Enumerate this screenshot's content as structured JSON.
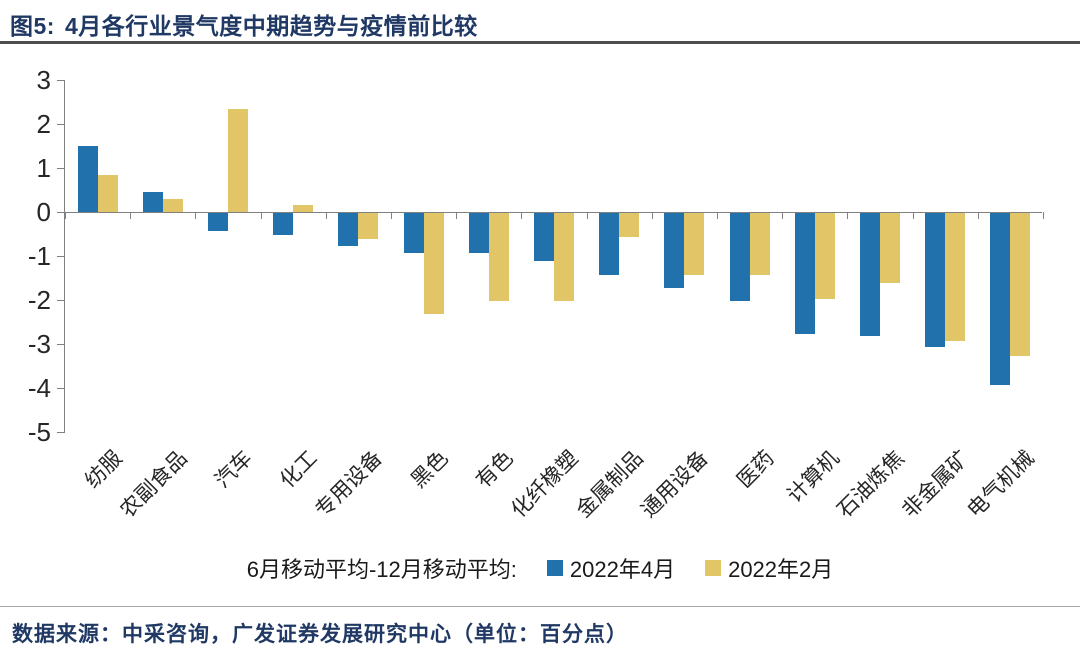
{
  "header": {
    "figure_label": "图5:",
    "title": "4月各行业景气度中期趋势与疫情前比较"
  },
  "chart_data": {
    "type": "bar",
    "title": "4月各行业景气度中期趋势与疫情前比较",
    "categories": [
      "纺服",
      "农副食品",
      "汽车",
      "化工",
      "专用设备",
      "黑色",
      "有色",
      "化纤橡塑",
      "金属制品",
      "通用设备",
      "医药",
      "计算机",
      "石油炼焦",
      "非金属矿",
      "电气机械"
    ],
    "series": [
      {
        "name": "2022年4月",
        "color": "#2071AC",
        "values": [
          1.5,
          0.45,
          -0.4,
          -0.5,
          -0.75,
          -0.9,
          -0.9,
          -1.1,
          -1.4,
          -1.7,
          -2.0,
          -2.75,
          -2.8,
          -3.05,
          -3.9
        ]
      },
      {
        "name": "2022年2月",
        "color": "#E2C566",
        "values": [
          0.85,
          0.3,
          2.35,
          0.15,
          -0.6,
          -2.3,
          -2.0,
          -2.0,
          -0.55,
          -1.4,
          -1.4,
          -1.95,
          -1.6,
          -2.9,
          -3.25
        ]
      }
    ],
    "ylim": [
      -5,
      3
    ],
    "yticks": [
      3,
      2,
      1,
      0,
      -1,
      -2,
      -3,
      -4,
      -5
    ],
    "grid": false,
    "legend_position": "bottom",
    "legend_prefix": "6月移动平均-12月移动平均:",
    "unit": "百分点"
  },
  "legend": {
    "prefix": "6月移动平均-12月移动平均:"
  },
  "footer": {
    "source_text": "数据来源：中采咨询，广发证券发展研究中心（单位：百分点）"
  },
  "colors": {
    "title_navy": "#1F3864",
    "bar_blue": "#2071AC",
    "bar_yellow": "#E2C566",
    "axis_gray": "#808080",
    "header_rule": "#4D4D4D"
  }
}
